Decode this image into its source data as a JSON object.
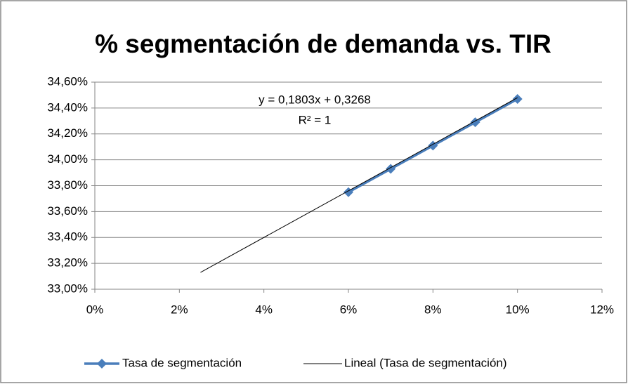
{
  "chart_data": {
    "type": "scatter",
    "title": "% segmentación de demanda vs. TIR",
    "annotations": [
      "y = 0,1803x + 0,3268",
      "R² = 1"
    ],
    "series": [
      {
        "name": "Tasa de segmentación",
        "color": "#4a7ebb",
        "x": [
          6,
          7,
          8,
          9,
          10
        ],
        "values": [
          33.75,
          33.93,
          34.11,
          34.29,
          34.47
        ]
      },
      {
        "name": "Lineal (Tasa de segmentación)",
        "color": "#000000",
        "x": [
          2.5,
          10
        ],
        "values": [
          33.13,
          34.48
        ]
      }
    ],
    "xlim": [
      0,
      12
    ],
    "xticks": [
      {
        "value": 0,
        "label": "0%"
      },
      {
        "value": 2,
        "label": "2%"
      },
      {
        "value": 4,
        "label": "4%"
      },
      {
        "value": 6,
        "label": "6%"
      },
      {
        "value": 8,
        "label": "8%"
      },
      {
        "value": 10,
        "label": "10%"
      },
      {
        "value": 12,
        "label": "12%"
      }
    ],
    "ylim": [
      33,
      34.6
    ],
    "yticks": [
      {
        "value": 33,
        "label": "33,00%"
      },
      {
        "value": 33.2,
        "label": "33,20%"
      },
      {
        "value": 33.4,
        "label": "33,40%"
      },
      {
        "value": 33.6,
        "label": "33,60%"
      },
      {
        "value": 33.8,
        "label": "33,80%"
      },
      {
        "value": 34,
        "label": "34,00%"
      },
      {
        "value": 34.2,
        "label": "34,20%"
      },
      {
        "value": 34.4,
        "label": "34,40%"
      },
      {
        "value": 34.6,
        "label": "34,60%"
      }
    ],
    "grid": true,
    "legend": "bottom"
  }
}
